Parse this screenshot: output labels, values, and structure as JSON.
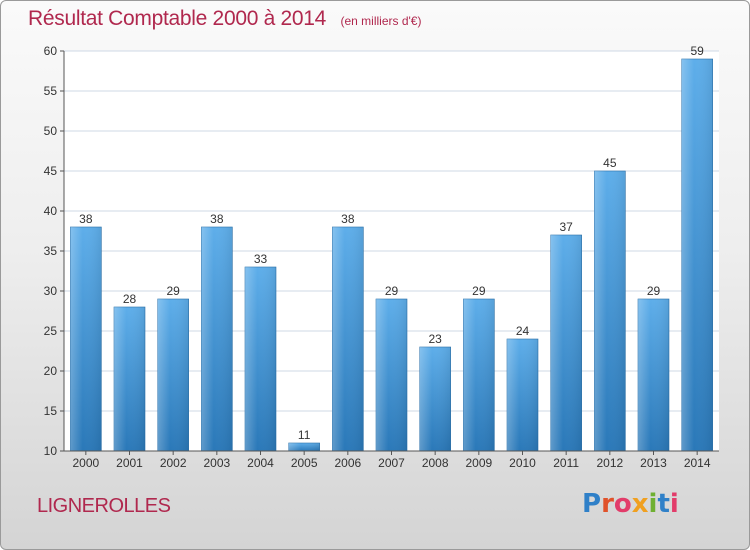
{
  "header": {
    "title": "Résultat Comptable 2000 à 2014",
    "unit_note": "(en milliers d'€)"
  },
  "footer": {
    "commune": "LIGNEROLLES",
    "logo_text": "Proxiti",
    "logo_colors": [
      "#2f80c8",
      "#e0522a",
      "#e23c6a",
      "#f0a020",
      "#6fb032",
      "#2f80c8",
      "#e23c6a"
    ]
  },
  "chart_data": {
    "type": "bar",
    "categories": [
      "2000",
      "2001",
      "2002",
      "2003",
      "2004",
      "2005",
      "2006",
      "2007",
      "2008",
      "2009",
      "2010",
      "2011",
      "2012",
      "2013",
      "2014"
    ],
    "values": [
      38,
      28,
      29,
      38,
      33,
      11,
      38,
      29,
      23,
      29,
      24,
      37,
      45,
      29,
      59
    ],
    "value_labels": [
      "38",
      "28",
      "29",
      "38",
      "33",
      "11",
      "38",
      "29",
      "23",
      "29",
      "24",
      "37",
      "45",
      "29",
      "59"
    ],
    "title": "Résultat Comptable 2000 à 2014",
    "ylim": [
      10,
      60
    ],
    "yticks": [
      "10",
      "15",
      "20",
      "25",
      "30",
      "35",
      "40",
      "45",
      "50",
      "55",
      "60"
    ],
    "grid": true,
    "bar_color_top": "#5eaeea",
    "bar_color_bottom": "#2a78b8",
    "grid_color": "#cfd9e6"
  }
}
